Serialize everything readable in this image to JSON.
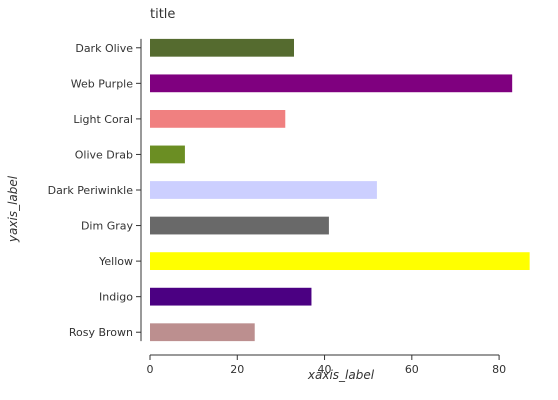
{
  "chart_data": {
    "type": "bar",
    "orientation": "horizontal",
    "title": "title",
    "xlabel": "xaxis_label",
    "ylabel": "yaxis_label",
    "xlim": [
      0,
      88
    ],
    "xticks": [
      0,
      20,
      40,
      60,
      80
    ],
    "grid": false,
    "categories": [
      "Rosy Brown",
      "Indigo",
      "Yellow",
      "Dim Gray",
      "Dark Periwinkle",
      "Olive Drab",
      "Light Coral",
      "Web Purple",
      "Dark Olive"
    ],
    "values": [
      24,
      37,
      87,
      41,
      52,
      8,
      31,
      83,
      33
    ],
    "colors": [
      "#bc8f8f",
      "#4b0082",
      "#ffff00",
      "#696969",
      "#cccfff",
      "#6b8e23",
      "#f08080",
      "#7f007f",
      "#556b2f"
    ]
  }
}
